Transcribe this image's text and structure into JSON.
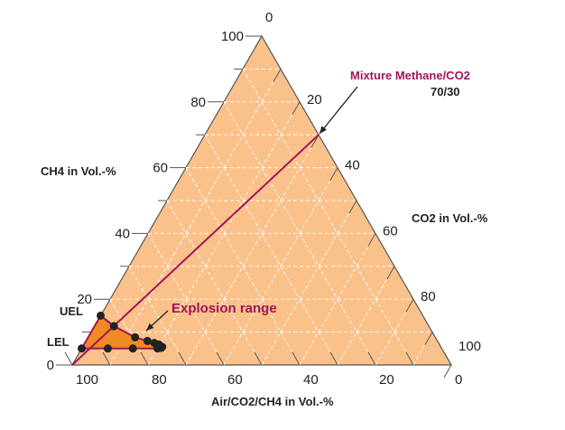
{
  "chart_data": {
    "type": "ternary",
    "axes": {
      "ch4": {
        "label": "CH4 in Vol.-%",
        "ticks": [
          "0",
          "20",
          "40",
          "60",
          "80",
          "100"
        ]
      },
      "co2": {
        "label": "CO2 in Vol.-%",
        "ticks": [
          "0",
          "20",
          "40",
          "60",
          "80",
          "100"
        ]
      },
      "air": {
        "label": "Air/CO2/CH4 in Vol.-%",
        "ticks": [
          "100",
          "80",
          "60",
          "40",
          "20",
          "0"
        ]
      }
    },
    "grid_step": 10,
    "annotations": {
      "mixture_line": {
        "line1": "Mixture Methane/CO2",
        "line2": "70/30",
        "ratio_ch4": 70,
        "ratio_co2": 30
      },
      "explosion": {
        "label": "Explosion range"
      },
      "uel": {
        "label": "UEL"
      },
      "lel": {
        "label": "LEL"
      }
    },
    "explosion_range_points": [
      {
        "ch4": 15.0,
        "co2": 0.0
      },
      {
        "ch4": 11.8,
        "co2": 5.1
      },
      {
        "ch4": 8.4,
        "co2": 12.4
      },
      {
        "ch4": 7.3,
        "co2": 16.2
      },
      {
        "ch4": 6.7,
        "co2": 18.3
      },
      {
        "ch4": 6.2,
        "co2": 19.8
      },
      {
        "ch4": 5.5,
        "co2": 21.0
      },
      {
        "ch4": 5.2,
        "co2": 20.9
      },
      {
        "ch4": 5.0,
        "co2": 20.0
      },
      {
        "ch4": 5.0,
        "co2": 13.5
      },
      {
        "ch4": 5.0,
        "co2": 6.9
      },
      {
        "ch4": 5.0,
        "co2": 0.0
      }
    ],
    "colors": {
      "fill": "#fbc18a",
      "grid": "#ffffff",
      "axis": "#555555",
      "line": "#a3135a",
      "range": "#f08a23",
      "point": "#222222"
    }
  }
}
